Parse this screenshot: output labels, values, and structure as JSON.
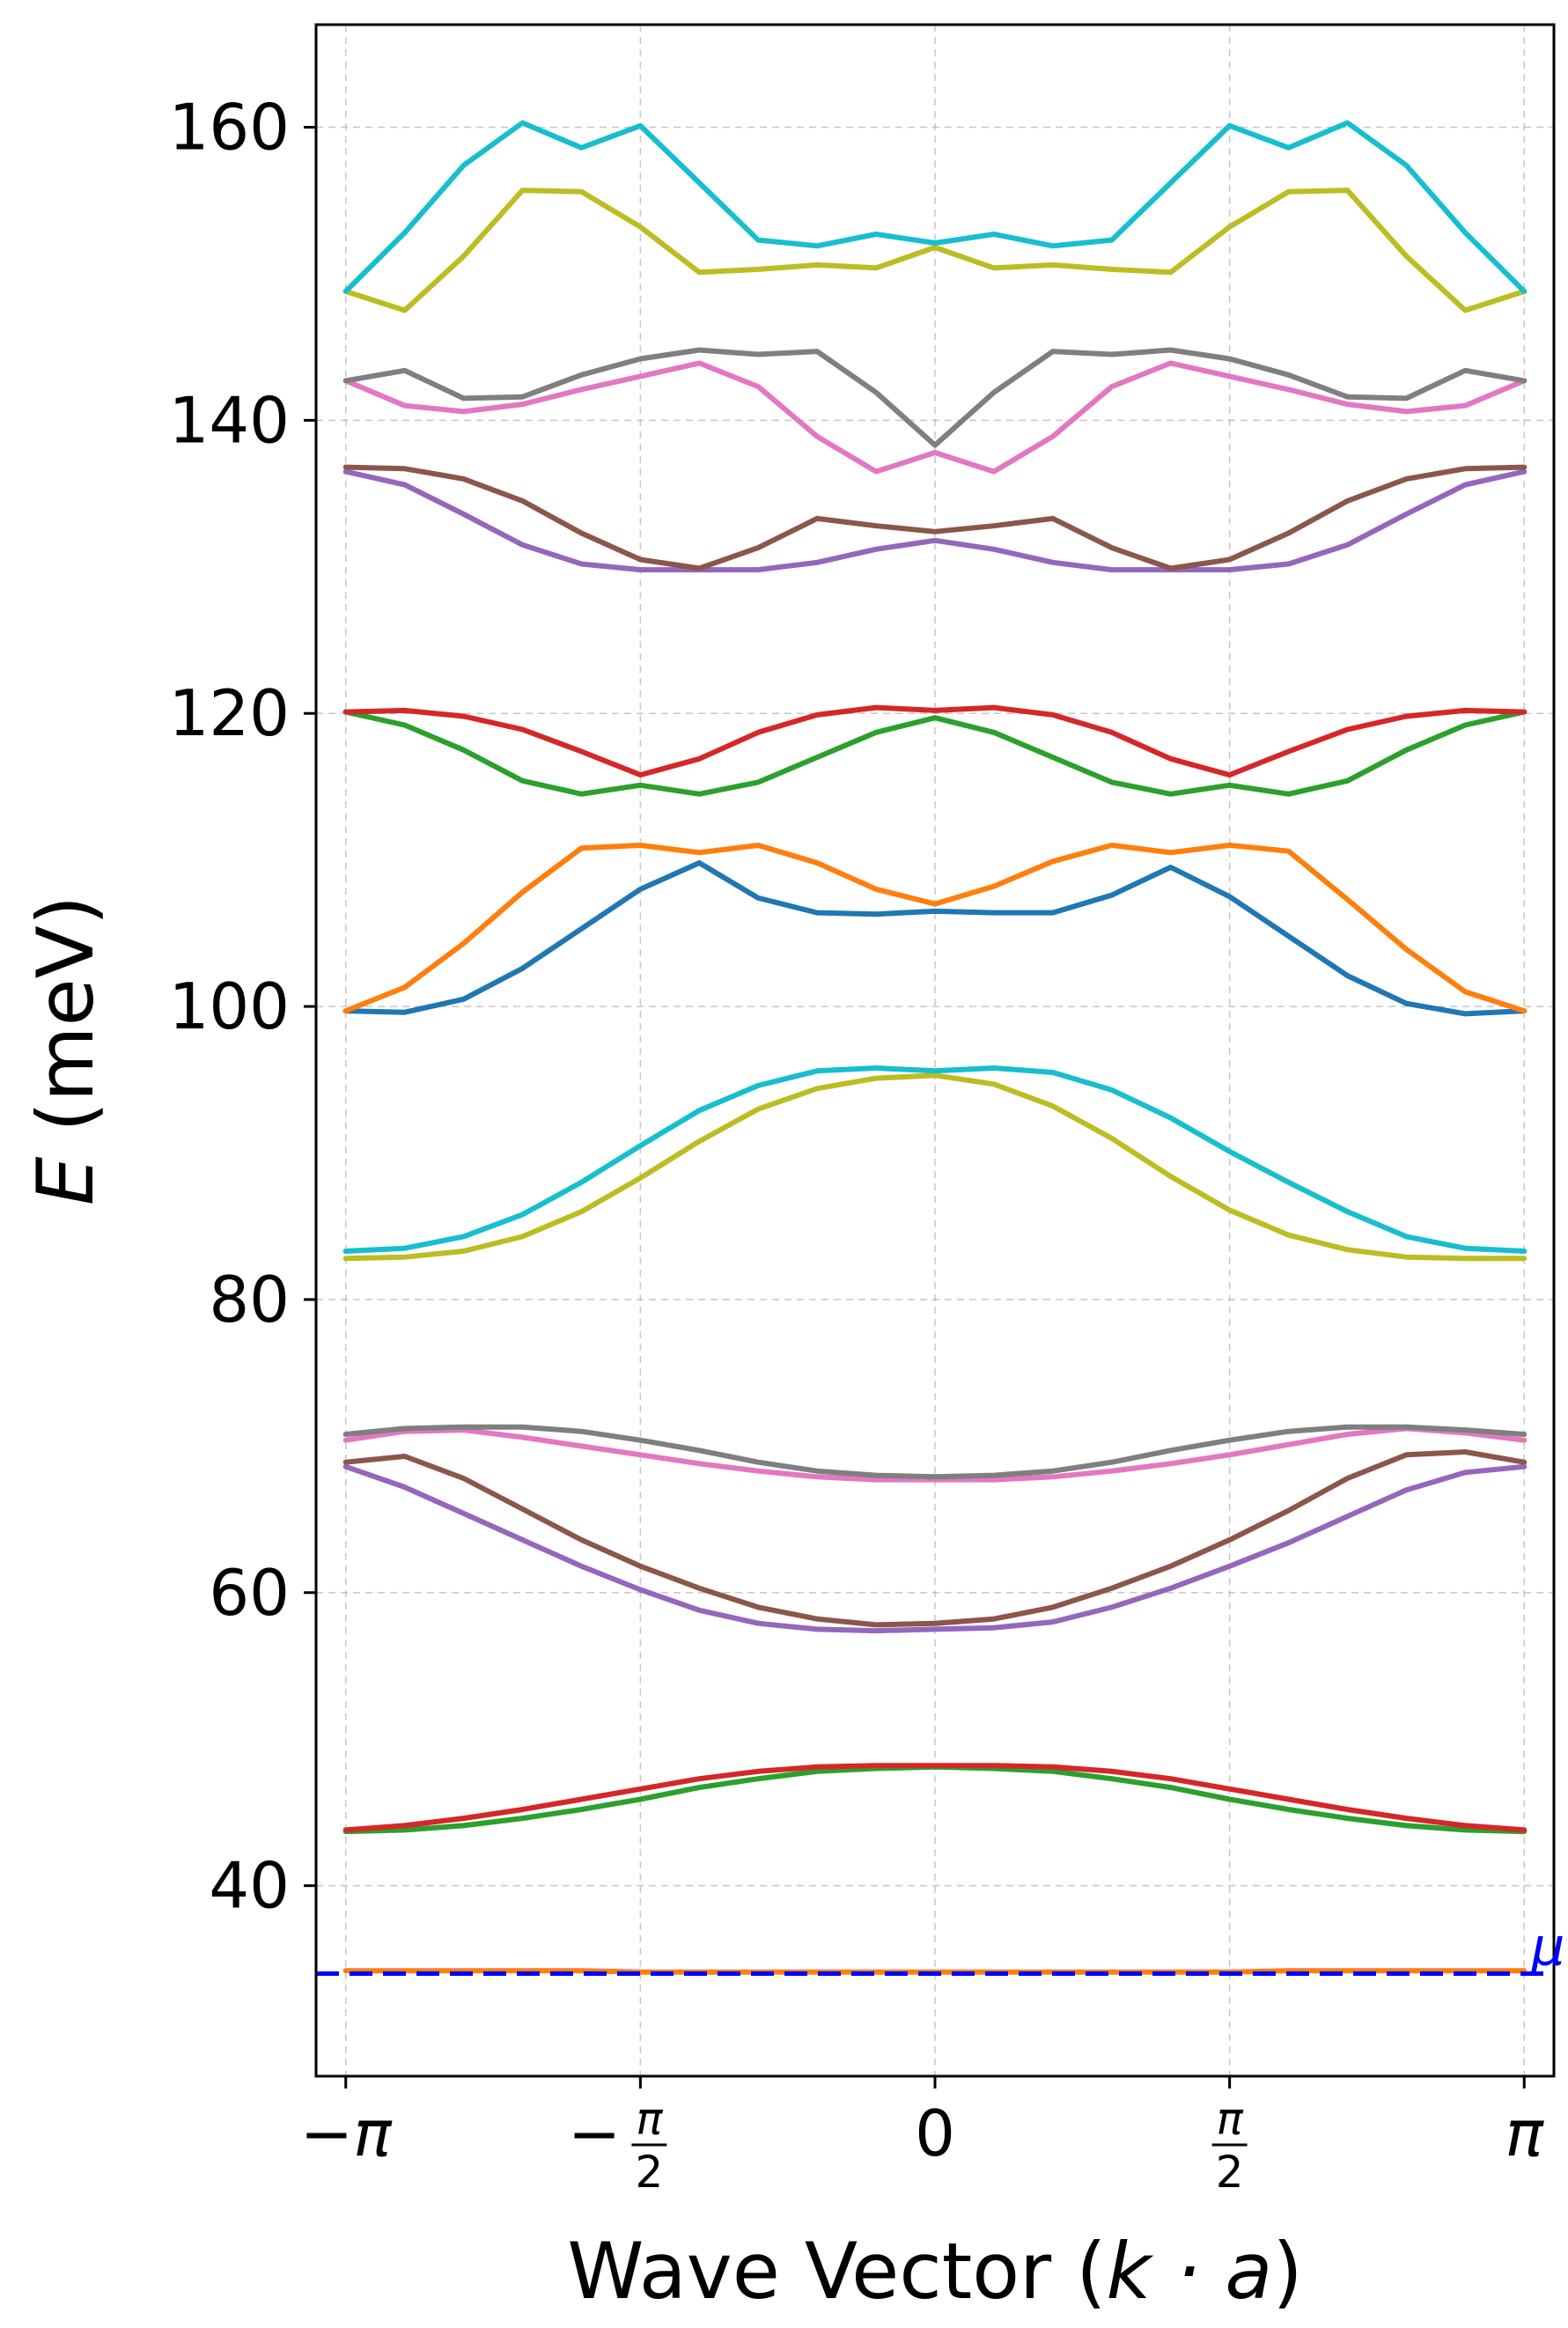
{
  "chart_data": {
    "type": "line",
    "xlabel_prefix": "Wave Vector (",
    "xlabel_var": "k · a",
    "xlabel_suffix": ")",
    "ylabel_var": "E",
    "ylabel_suffix": " (meV)",
    "xlim": [
      -3.3,
      3.3
    ],
    "ylim": [
      27,
      167
    ],
    "grid": true,
    "x_ticks": [
      {
        "value": -3.14159,
        "text": "−π"
      },
      {
        "value": -1.5708,
        "text": "−",
        "frac": "π/2"
      },
      {
        "value": 0,
        "text": "0"
      },
      {
        "value": 1.5708,
        "text": "",
        "frac": "π/2"
      },
      {
        "value": 3.14159,
        "text": "π"
      }
    ],
    "y_ticks": [
      40,
      60,
      80,
      100,
      120,
      140,
      160
    ],
    "x": [
      -3.14159,
      -2.82743,
      -2.51327,
      -2.19911,
      -1.88496,
      -1.5708,
      -1.25664,
      -0.94248,
      -0.62832,
      -0.31416,
      0,
      0.31416,
      0.62832,
      0.94248,
      1.25664,
      1.5708,
      1.88496,
      2.19911,
      2.51327,
      2.82743,
      3.14159
    ],
    "series": [
      {
        "color": "#ff7f0e",
        "values": [
          34.2,
          34.2,
          34.2,
          34.2,
          34.2,
          34.1,
          34.1,
          34.1,
          34.1,
          34.1,
          34.1,
          34.1,
          34.1,
          34.1,
          34.1,
          34.1,
          34.2,
          34.2,
          34.2,
          34.2,
          34.2
        ]
      },
      {
        "color": "#2ca02c",
        "values": [
          43.7,
          43.8,
          44.1,
          44.6,
          45.2,
          45.9,
          46.7,
          47.3,
          47.8,
          48.0,
          48.1,
          48.0,
          47.8,
          47.3,
          46.7,
          45.9,
          45.2,
          44.6,
          44.1,
          43.8,
          43.7
        ]
      },
      {
        "color": "#d62728",
        "values": [
          43.8,
          44.1,
          44.6,
          45.2,
          45.9,
          46.6,
          47.3,
          47.8,
          48.1,
          48.2,
          48.2,
          48.2,
          48.1,
          47.8,
          47.3,
          46.6,
          45.9,
          45.2,
          44.6,
          44.1,
          43.8
        ]
      },
      {
        "color": "#9467bd",
        "values": [
          68.6,
          67.2,
          65.4,
          63.6,
          61.8,
          60.2,
          58.8,
          57.9,
          57.5,
          57.4,
          57.5,
          57.6,
          58.0,
          59.0,
          60.3,
          61.8,
          63.4,
          65.2,
          67.0,
          68.2,
          68.6
        ]
      },
      {
        "color": "#8c564b",
        "values": [
          68.9,
          69.3,
          67.8,
          65.7,
          63.6,
          61.8,
          60.3,
          59.0,
          58.2,
          57.8,
          57.9,
          58.2,
          59.0,
          60.3,
          61.8,
          63.6,
          65.6,
          67.8,
          69.4,
          69.6,
          68.9
        ]
      },
      {
        "color": "#e377c2",
        "values": [
          70.4,
          71.0,
          71.1,
          70.6,
          70.0,
          69.4,
          68.8,
          68.3,
          67.9,
          67.7,
          67.7,
          67.7,
          67.9,
          68.3,
          68.8,
          69.4,
          70.1,
          70.8,
          71.2,
          70.9,
          70.4
        ]
      },
      {
        "color": "#7f7f7f",
        "values": [
          70.8,
          71.2,
          71.3,
          71.3,
          71.0,
          70.4,
          69.7,
          68.9,
          68.3,
          68.0,
          67.9,
          68.0,
          68.3,
          68.9,
          69.7,
          70.4,
          71.0,
          71.3,
          71.3,
          71.1,
          70.8
        ]
      },
      {
        "color": "#bcbd22",
        "values": [
          82.8,
          82.9,
          83.3,
          84.3,
          86.0,
          88.3,
          90.8,
          93.0,
          94.4,
          95.1,
          95.3,
          94.7,
          93.2,
          91.0,
          88.4,
          86.1,
          84.4,
          83.4,
          82.9,
          82.8,
          82.8
        ]
      },
      {
        "color": "#17becf",
        "values": [
          83.3,
          83.5,
          84.3,
          85.8,
          88.0,
          90.5,
          92.9,
          94.6,
          95.6,
          95.8,
          95.6,
          95.8,
          95.5,
          94.3,
          92.4,
          90.1,
          88.0,
          86.0,
          84.3,
          83.5,
          83.3
        ]
      },
      {
        "color": "#1f77b4",
        "values": [
          99.7,
          99.6,
          100.5,
          102.6,
          105.3,
          108.0,
          109.8,
          107.4,
          106.4,
          106.3,
          106.5,
          106.4,
          106.4,
          107.6,
          109.5,
          107.5,
          104.8,
          102.1,
          100.2,
          99.5,
          99.7
        ]
      },
      {
        "color": "#ff7f0e",
        "values": [
          99.7,
          101.3,
          104.3,
          107.8,
          110.8,
          111.0,
          110.5,
          111.0,
          109.8,
          108.0,
          107.0,
          108.2,
          109.9,
          111.0,
          110.5,
          111.0,
          110.6,
          107.3,
          103.9,
          101.0,
          99.7
        ]
      },
      {
        "color": "#2ca02c",
        "values": [
          120.1,
          119.2,
          117.5,
          115.4,
          114.5,
          115.1,
          114.5,
          115.3,
          117.0,
          118.7,
          119.7,
          118.7,
          117.0,
          115.3,
          114.5,
          115.1,
          114.5,
          115.4,
          117.5,
          119.2,
          120.1
        ]
      },
      {
        "color": "#d62728",
        "values": [
          120.1,
          120.2,
          119.8,
          118.9,
          117.4,
          115.8,
          116.9,
          118.7,
          119.9,
          120.4,
          120.2,
          120.4,
          119.9,
          118.7,
          116.9,
          115.8,
          117.4,
          118.9,
          119.8,
          120.2,
          120.1
        ]
      },
      {
        "color": "#9467bd",
        "values": [
          136.5,
          135.6,
          133.6,
          131.5,
          130.2,
          129.8,
          129.8,
          129.8,
          130.3,
          131.2,
          131.8,
          131.2,
          130.3,
          129.8,
          129.8,
          129.8,
          130.2,
          131.5,
          133.6,
          135.6,
          136.5
        ]
      },
      {
        "color": "#8c564b",
        "values": [
          136.8,
          136.7,
          136.0,
          134.5,
          132.3,
          130.5,
          129.9,
          131.3,
          133.3,
          132.8,
          132.4,
          132.8,
          133.3,
          131.3,
          129.9,
          130.5,
          132.3,
          134.5,
          136.0,
          136.7,
          136.8
        ]
      },
      {
        "color": "#e377c2",
        "values": [
          142.7,
          141.0,
          140.6,
          141.1,
          142.1,
          143.0,
          143.9,
          142.3,
          138.9,
          136.5,
          137.8,
          136.5,
          138.9,
          142.3,
          143.9,
          143.0,
          142.1,
          141.1,
          140.6,
          141.0,
          142.7
        ]
      },
      {
        "color": "#7f7f7f",
        "values": [
          142.7,
          143.4,
          141.5,
          141.6,
          143.1,
          144.2,
          144.8,
          144.5,
          144.7,
          141.9,
          138.3,
          141.9,
          144.7,
          144.5,
          144.8,
          144.2,
          143.1,
          141.6,
          141.5,
          143.4,
          142.7
        ]
      },
      {
        "color": "#bcbd22",
        "values": [
          148.8,
          147.5,
          151.2,
          155.7,
          155.6,
          153.2,
          150.1,
          150.3,
          150.6,
          150.4,
          151.8,
          150.4,
          150.6,
          150.3,
          150.1,
          153.2,
          155.6,
          155.7,
          151.2,
          147.5,
          148.8
        ]
      },
      {
        "color": "#17becf",
        "values": [
          148.8,
          152.8,
          157.4,
          160.3,
          158.6,
          160.1,
          156.2,
          152.3,
          151.9,
          152.7,
          152.1,
          152.7,
          151.9,
          152.3,
          156.2,
          160.1,
          158.6,
          160.3,
          157.4,
          152.8,
          148.8
        ]
      }
    ],
    "reference_line": {
      "y": 34.0,
      "label": "μ",
      "color": "#0000ff"
    }
  }
}
